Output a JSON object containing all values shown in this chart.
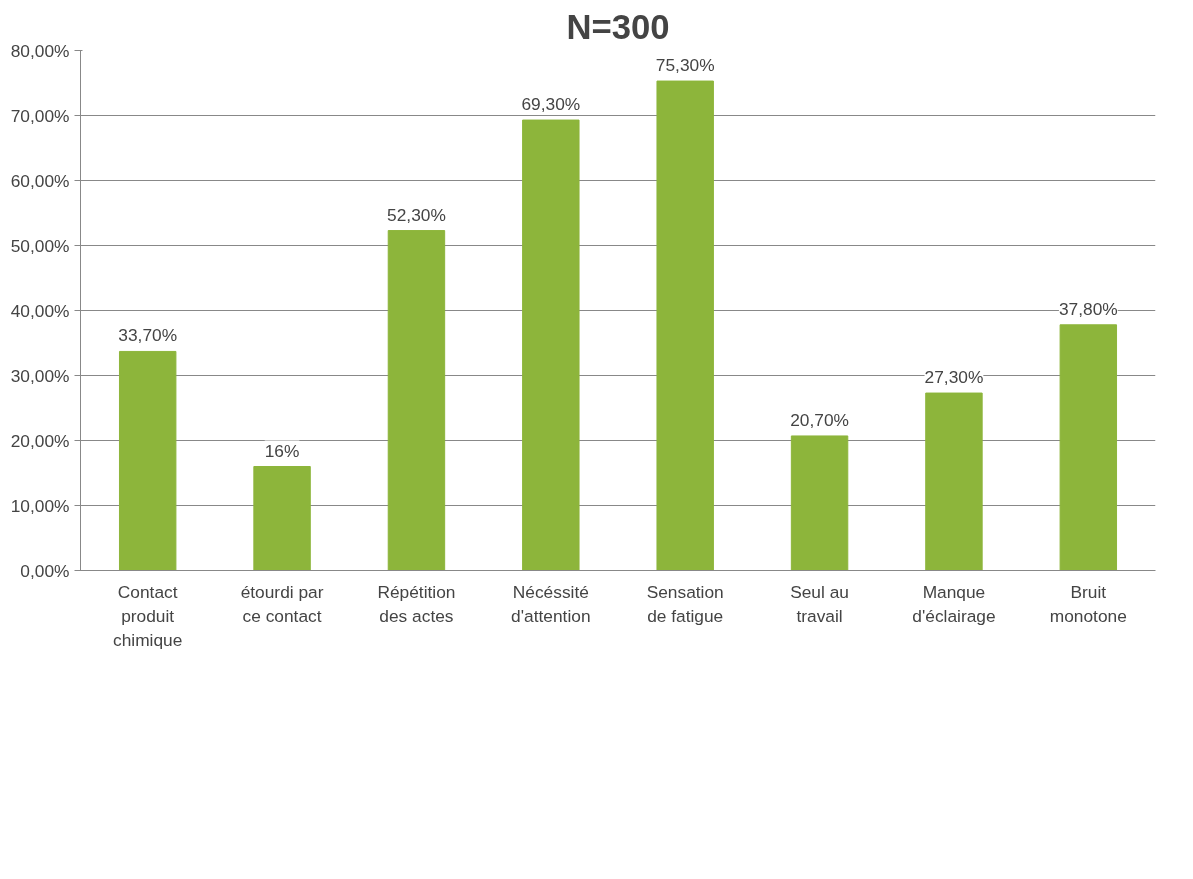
{
  "chart_data": {
    "type": "bar",
    "title": "N=300",
    "categories": [
      "Contact\nproduit\nchimique",
      "étourdi par\nce contact",
      "Répétition\ndes actes",
      "Nécéssité\nd'attention",
      "Sensation\nde fatigue",
      "Seul au\ntravail",
      "Manque\nd'éclairage",
      "Bruit\nmonotone"
    ],
    "values": [
      33.7,
      16,
      52.3,
      69.3,
      75.3,
      20.7,
      27.3,
      37.8
    ],
    "value_labels": [
      "33,70%",
      "16%",
      "52,30%",
      "69,30%",
      "75,30%",
      "20,70%",
      "27,30%",
      "37,80%"
    ],
    "color": "#8db53b",
    "ylim": [
      0,
      80
    ],
    "yticks": [
      {
        "value": 0,
        "label": "0,00%"
      },
      {
        "value": 10,
        "label": "10,00%"
      },
      {
        "value": 20,
        "label": "20,00%"
      },
      {
        "value": 30,
        "label": "30,00%"
      },
      {
        "value": 40,
        "label": "40,00%"
      },
      {
        "value": 50,
        "label": "50,00%"
      },
      {
        "value": 60,
        "label": "60,00%"
      },
      {
        "value": 70,
        "label": "70,00%"
      },
      {
        "value": 80,
        "label": "80,00%"
      }
    ],
    "grid": "y"
  }
}
